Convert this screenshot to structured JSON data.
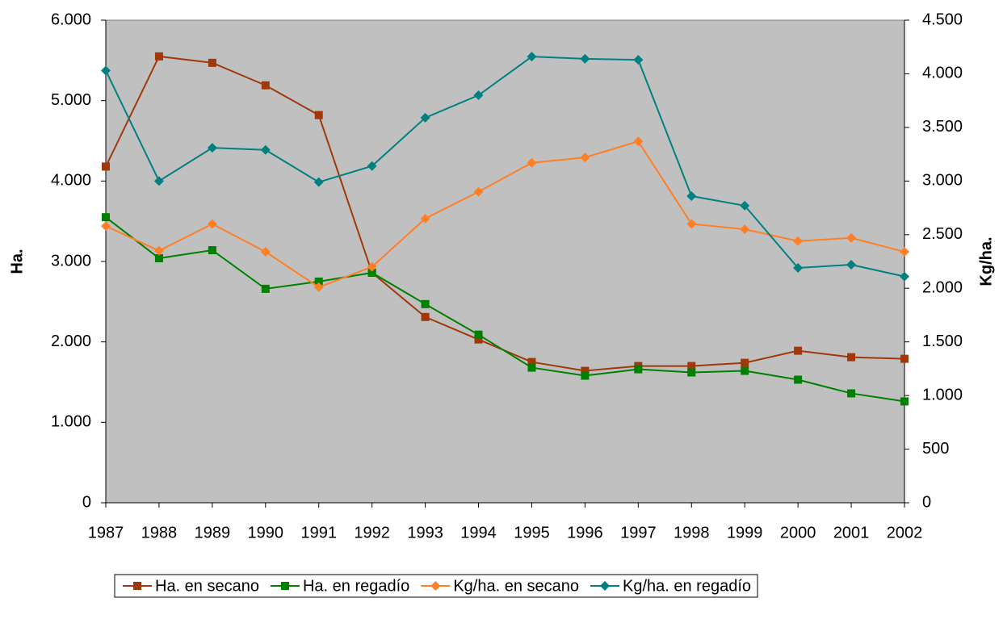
{
  "chart_data": {
    "type": "line",
    "categories": [
      "1987",
      "1988",
      "1989",
      "1990",
      "1991",
      "1992",
      "1993",
      "1994",
      "1995",
      "1996",
      "1997",
      "1998",
      "1999",
      "2000",
      "2001",
      "2002"
    ],
    "series": [
      {
        "name": "Ha. en secano",
        "color": "#a0380a",
        "marker": "square",
        "values": [
          4180,
          5550,
          5470,
          5190,
          4820,
          2860,
          2310,
          2030,
          1750,
          1640,
          1700,
          1700,
          1740,
          1890,
          1810,
          1790
        ]
      },
      {
        "name": "Ha. en regadío",
        "color": "#008000",
        "marker": "square",
        "values": [
          3550,
          3040,
          3140,
          2660,
          2750,
          2860,
          2470,
          2090,
          1680,
          1580,
          1660,
          1620,
          1640,
          1530,
          1360,
          1260
        ]
      },
      {
        "name": "Kg/ha. en secano",
        "color": "#ff7f27",
        "marker": "diamond",
        "axis": "y2",
        "values": [
          2580,
          2350,
          2600,
          2340,
          2010,
          2200,
          2650,
          2900,
          3170,
          3220,
          3370,
          2600,
          2550,
          2440,
          2470,
          2340
        ]
      },
      {
        "name": "Kg/ha. en regadío",
        "color": "#008080",
        "marker": "diamond",
        "axis": "y2",
        "values": [
          4030,
          3000,
          3310,
          3290,
          2990,
          3140,
          3590,
          3800,
          4160,
          4140,
          4130,
          2860,
          2770,
          2190,
          2220,
          2110
        ]
      }
    ],
    "ylabel": "Ha.",
    "y2label": "Kg/ha.",
    "ylim": [
      0,
      6000
    ],
    "yticks": [
      0,
      {
        "value": 1000,
        "label": "1.000"
      },
      {
        "value": 2000,
        "label": "2.000"
      },
      {
        "value": 3000,
        "label": "3.000"
      },
      {
        "value": 4000,
        "label": "4.000"
      },
      {
        "value": 5000,
        "label": "5.000"
      },
      {
        "value": 6000,
        "label": "6.000"
      }
    ],
    "y2lim": [
      0,
      4500
    ],
    "y2ticks": [
      0,
      500,
      {
        "value": 1000,
        "label": "1.000"
      },
      {
        "value": 1500,
        "label": "1.500"
      },
      {
        "value": 2000,
        "label": "2.000"
      },
      {
        "value": 2500,
        "label": "2.500"
      },
      {
        "value": 3000,
        "label": "3.000"
      },
      {
        "value": 3500,
        "label": "3.500"
      },
      {
        "value": 4000,
        "label": "4.000"
      },
      {
        "value": 4500,
        "label": "4.500"
      }
    ],
    "plot_background": "#c0c0c0",
    "legend": "bottom"
  }
}
